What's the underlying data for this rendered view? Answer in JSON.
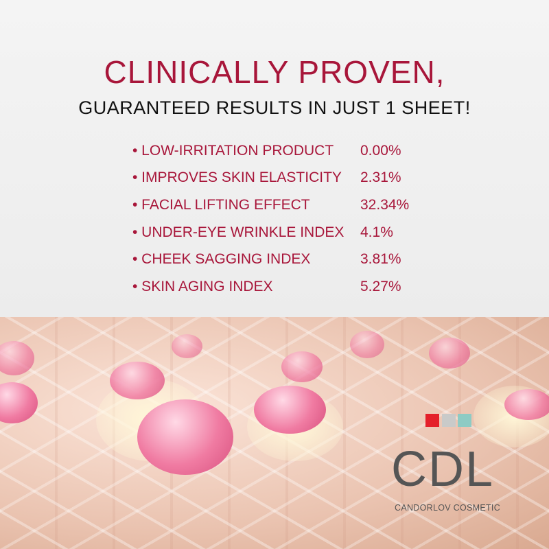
{
  "headline": "CLINICALLY PROVEN,",
  "subheadline": "GUARANTEED RESULTS IN JUST 1 SHEET!",
  "results": [
    {
      "label": "• LOW-IRRITATION PRODUCT",
      "value": "0.00%"
    },
    {
      "label": "• IMPROVES SKIN ELASTICITY",
      "value": "2.31%"
    },
    {
      "label": "• FACIAL LIFTING EFFECT",
      "value": "32.34%"
    },
    {
      "label": "• UNDER-EYE WRINKLE INDEX",
      "value": "4.1%"
    },
    {
      "label": "• CHEEK SAGGING INDEX",
      "value": "3.81%"
    },
    {
      "label": "• SKIN AGING INDEX",
      "value": "5.27%"
    }
  ],
  "brand": {
    "logo": "CDL",
    "name": "CANDORLOV COSMETIC",
    "colors": [
      "#e4202a",
      "#c9cac9",
      "#8ecbc4"
    ]
  },
  "colors": {
    "accent": "#a8163a"
  }
}
